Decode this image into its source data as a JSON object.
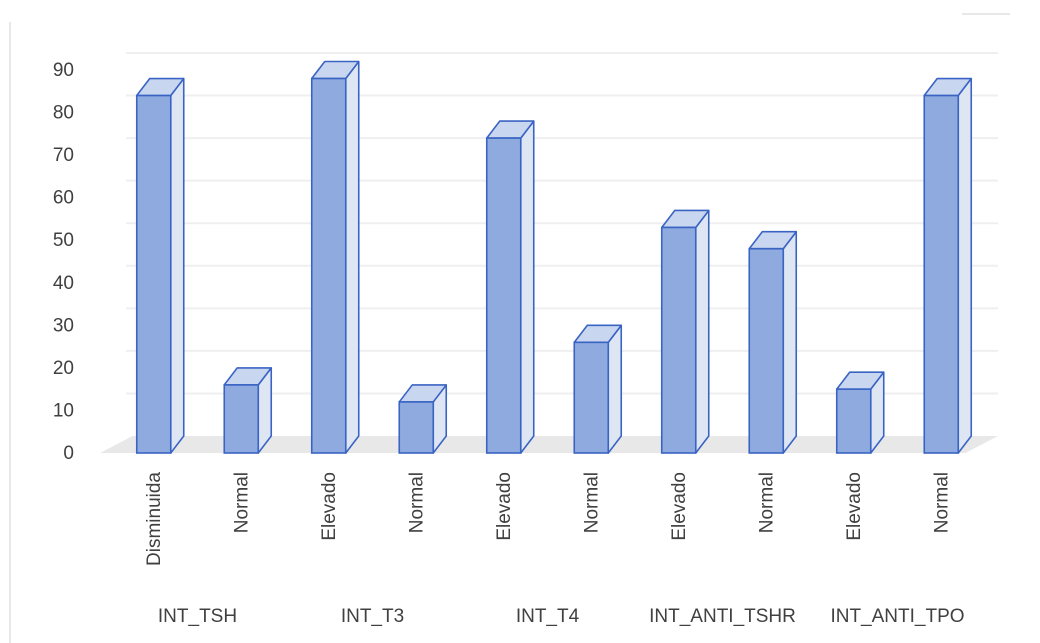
{
  "chart_data": {
    "type": "bar",
    "style": "3d-column",
    "title": "",
    "xlabel": "",
    "ylabel": "",
    "ylim": [
      0,
      90
    ],
    "yticks": [
      0,
      10,
      20,
      30,
      40,
      50,
      60,
      70,
      80,
      90
    ],
    "grid": true,
    "legend": "none",
    "groups": [
      {
        "name": "INT_TSH",
        "categories": [
          "Disminuida",
          "Normal"
        ]
      },
      {
        "name": "INT_T3",
        "categories": [
          "Elevado",
          "Normal"
        ]
      },
      {
        "name": "INT_T4",
        "categories": [
          "Elevado",
          "Normal"
        ]
      },
      {
        "name": "INT_ANTI_TSHR",
        "categories": [
          "Elevado",
          "Normal"
        ]
      },
      {
        "name": "INT_ANTI_TPO",
        "categories": [
          "Elevado",
          "Normal"
        ]
      }
    ],
    "categories": [
      "Disminuida",
      "Normal",
      "Elevado",
      "Normal",
      "Elevado",
      "Normal",
      "Elevado",
      "Normal",
      "Elevado",
      "Normal"
    ],
    "values": [
      84,
      16,
      88,
      12,
      74,
      26,
      53,
      48,
      15,
      84
    ],
    "colors": {
      "bar_front": "#8eaadf",
      "bar_side": "#dfe6f3",
      "bar_top": "#c9d6f0",
      "bar_edge": "#3a64c4",
      "gridline": "#efefef",
      "floor": "#e8e8e8",
      "axis_text": "#404040",
      "frame": "#d0d0d0"
    }
  }
}
